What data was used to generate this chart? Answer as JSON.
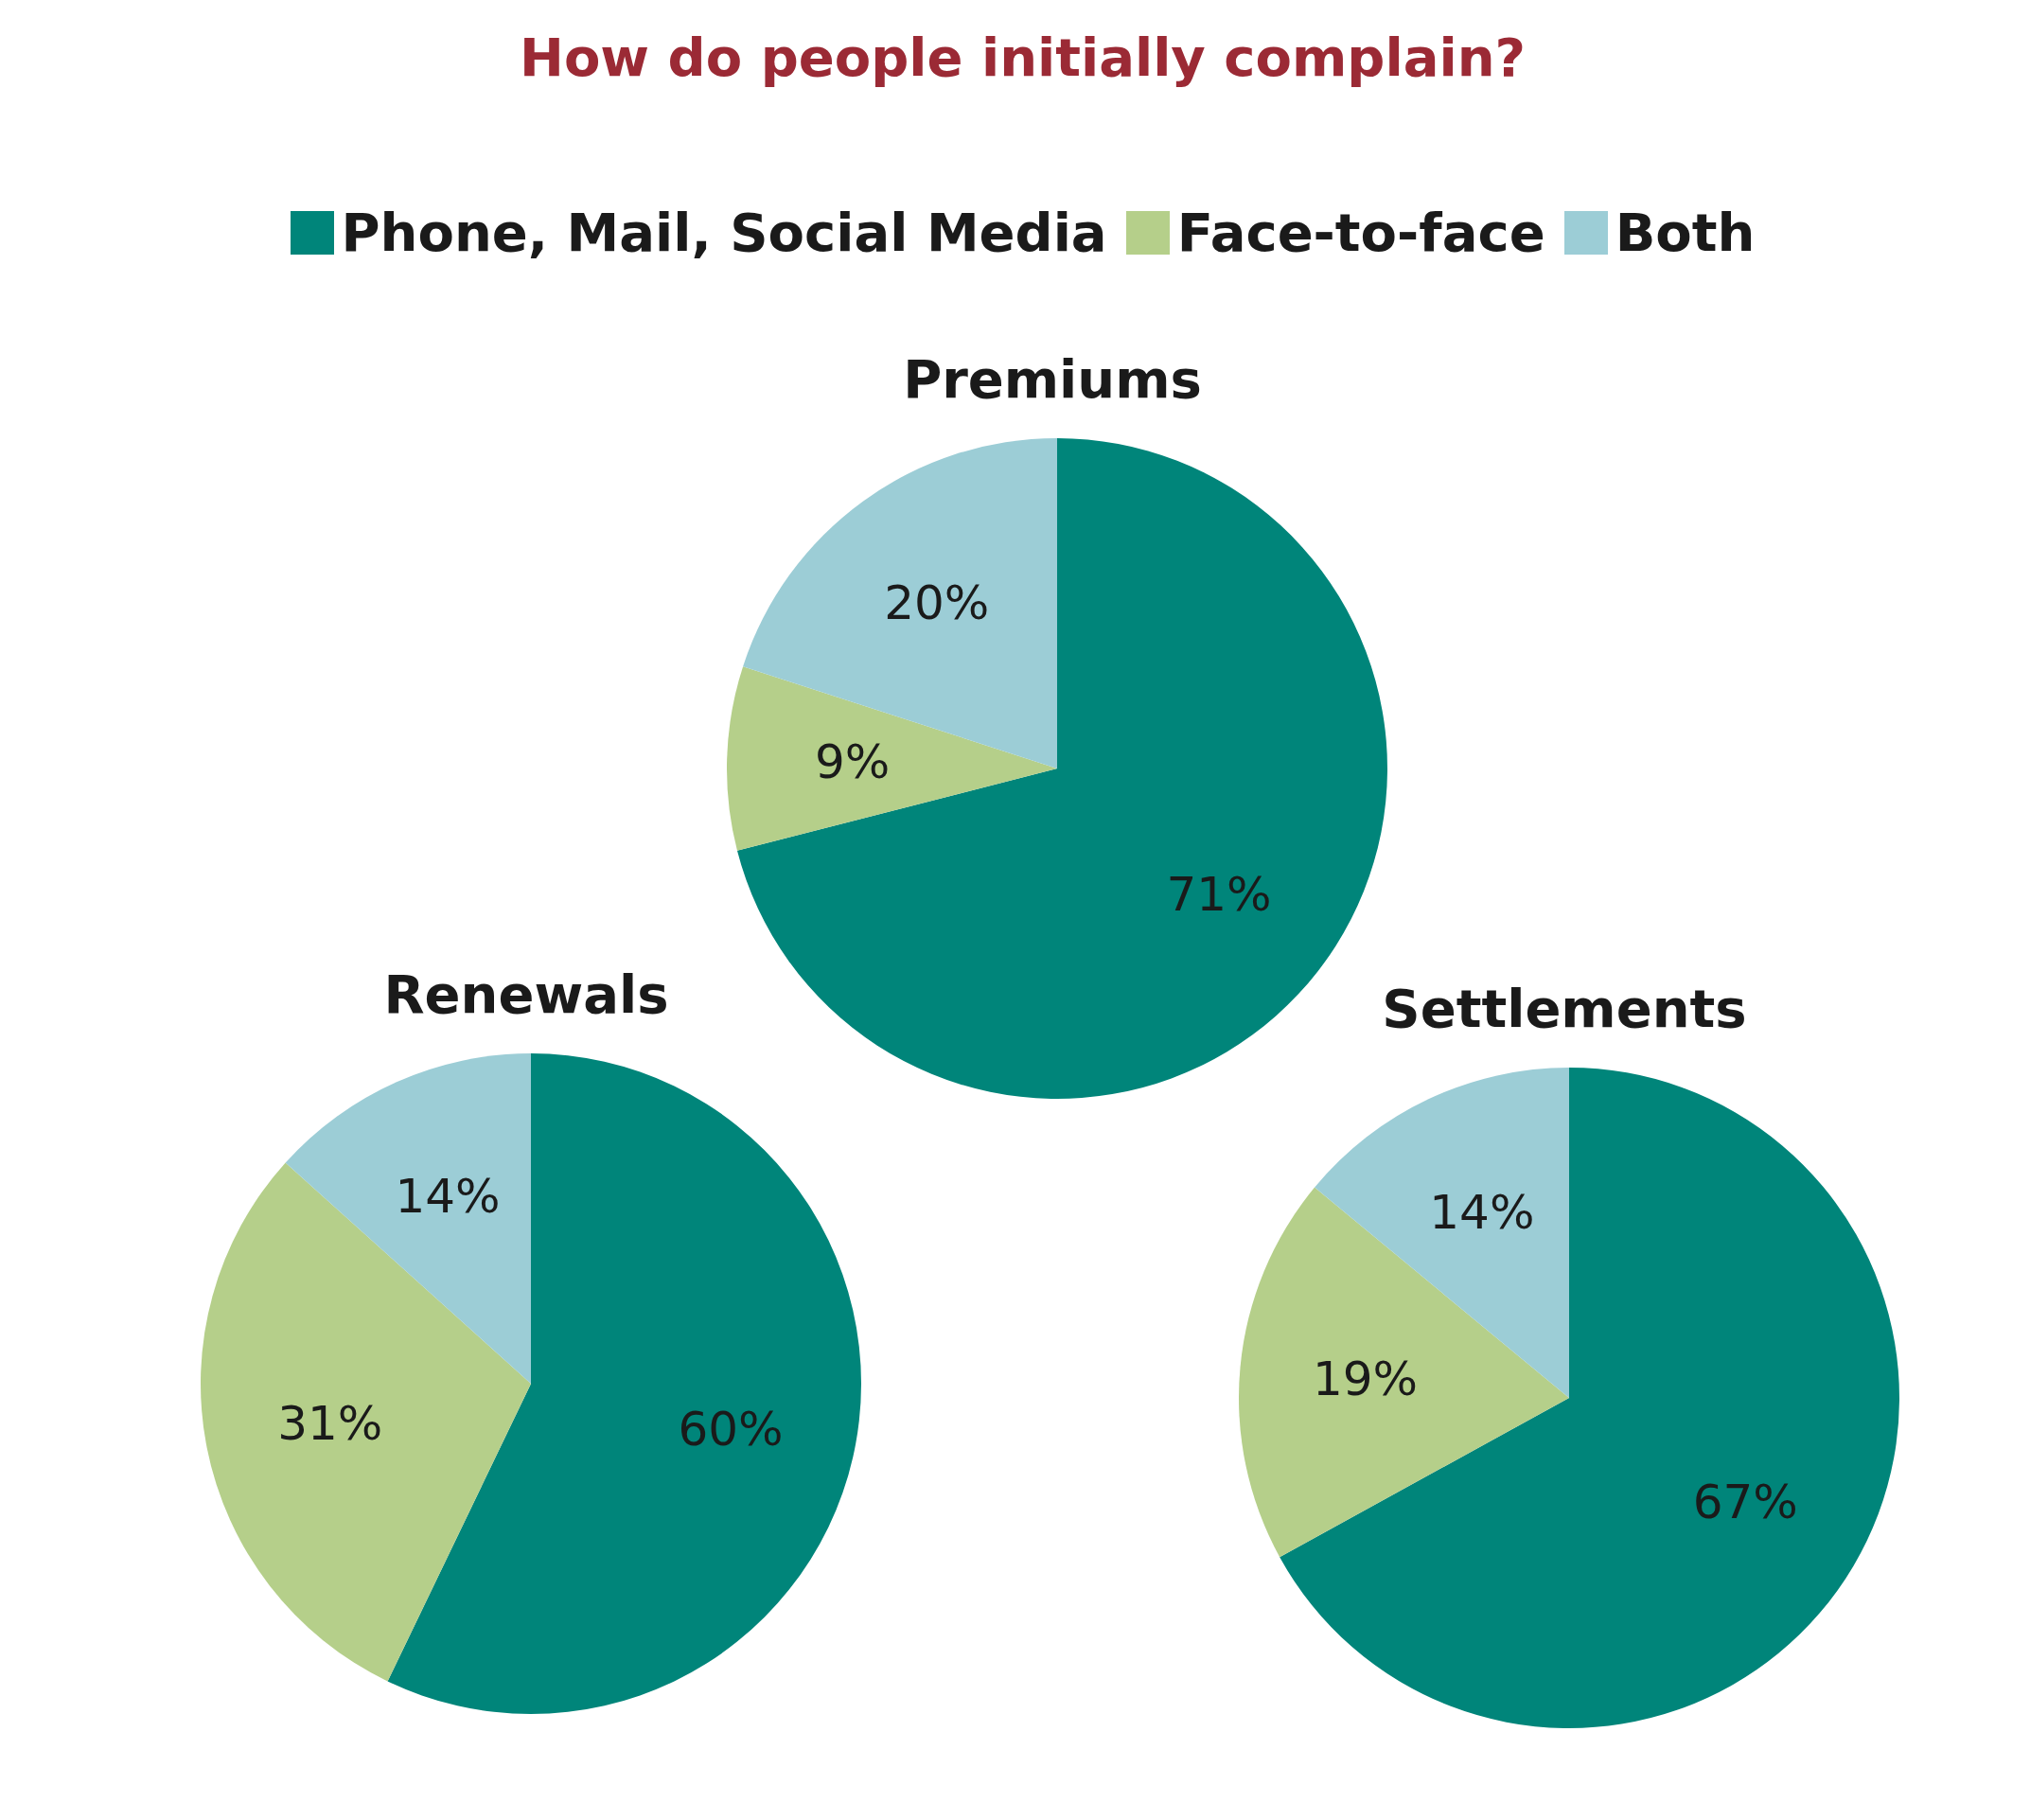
{
  "chart_data": [
    {
      "type": "pie",
      "title": "Premiums",
      "annotations": [
        "How do people initially complain?"
      ],
      "categories": [
        "Phone, Mail, Social Media",
        "Face-to-face",
        "Both"
      ],
      "values": [
        71,
        9,
        20
      ],
      "colors": [
        "#00857a",
        "#b5cf8a",
        "#9ccdd6"
      ],
      "value_labels": [
        "71%",
        "9%",
        "20%"
      ],
      "legend": "top"
    },
    {
      "type": "pie",
      "title": "Renewals",
      "categories": [
        null,
        null,
        null
      ],
      "values": [
        60,
        31,
        14
      ],
      "colors": [
        "#00857a",
        "#b5cf8a",
        "#9ccdd6"
      ],
      "value_labels": [
        "60%",
        "31%",
        "14%"
      ]
    },
    {
      "type": "pie",
      "title": "Settlements",
      "categories": [
        null,
        null,
        null
      ],
      "values": [
        67,
        19,
        14
      ],
      "colors": [
        "#00857a",
        "#b5cf8a",
        "#9ccdd6"
      ],
      "value_labels": [
        "67%",
        "19%",
        "14%"
      ]
    }
  ]
}
